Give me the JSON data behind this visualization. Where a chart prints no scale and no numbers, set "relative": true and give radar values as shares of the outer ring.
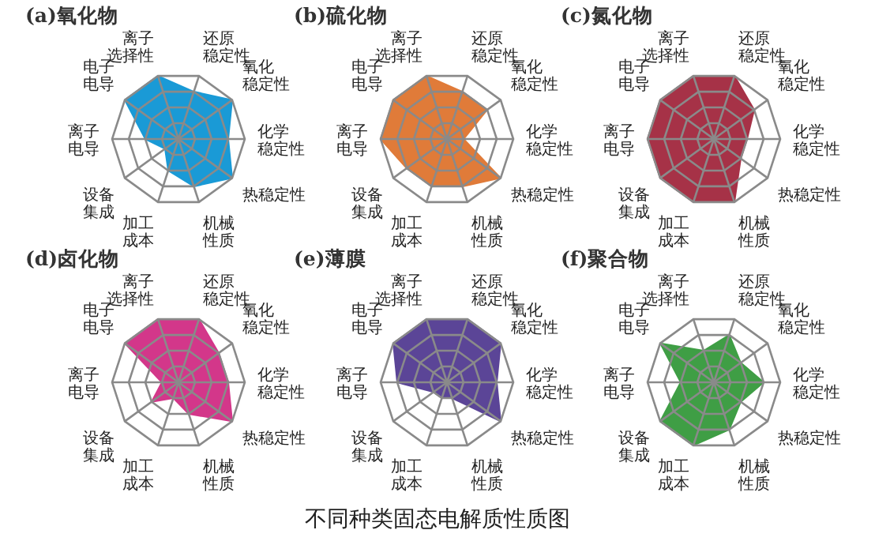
{
  "chart_data": [
    {
      "type": "radar",
      "title": "(a)氧化物",
      "relative": true,
      "categories": [
        "离子选择性",
        "还原稳定性",
        "氧化稳定性",
        "化学稳定性",
        "热稳定性",
        "机械性质",
        "加工成本",
        "设备集成",
        "离子电导",
        "电子电导"
      ],
      "series": [
        {
          "color": "#1a9ad6",
          "values": [
            1,
            0.75,
            1,
            0.75,
            1,
            0.75,
            0.5,
            0.25,
            0.5,
            1
          ]
        }
      ]
    },
    {
      "type": "radar",
      "title": "(b)硫化物",
      "relative": true,
      "categories": [
        "离子选择性",
        "还原稳定性",
        "氧化稳定性",
        "化学稳定性",
        "热稳定性",
        "机械性质",
        "加工成本",
        "设备集成",
        "离子电导",
        "电子电导"
      ],
      "series": [
        {
          "color": "#e07b39",
          "values": [
            1,
            0.75,
            0.75,
            0.25,
            1,
            0.75,
            0.75,
            0.75,
            1,
            1
          ]
        }
      ]
    },
    {
      "type": "radar",
      "title": "(c)氮化物",
      "relative": true,
      "categories": [
        "离子选择性",
        "还原稳定性",
        "氧化稳定性",
        "化学稳定性",
        "热稳定性",
        "机械性质",
        "加工成本",
        "设备集成",
        "离子电导",
        "电子电导"
      ],
      "series": [
        {
          "color": "#a63247",
          "values": [
            1,
            1,
            0.75,
            0.5,
            0.5,
            1,
            1,
            1,
            1,
            1
          ]
        }
      ]
    },
    {
      "type": "radar",
      "title": "(d)卤化物",
      "relative": true,
      "categories": [
        "离子选择性",
        "还原稳定性",
        "氧化稳定性",
        "化学稳定性",
        "热稳定性",
        "机械性质",
        "加工成本",
        "设备集成",
        "离子电导",
        "电子电导"
      ],
      "series": [
        {
          "color": "#d3378a",
          "values": [
            1,
            1,
            0.75,
            0.75,
            1,
            0.5,
            0.25,
            0.5,
            0.25,
            1
          ]
        }
      ]
    },
    {
      "type": "radar",
      "title": "(e)薄膜",
      "relative": true,
      "categories": [
        "离子选择性",
        "还原稳定性",
        "氧化稳定性",
        "化学稳定性",
        "热稳定性",
        "机械性质",
        "加工成本",
        "设备集成",
        "离子电导",
        "电子电导"
      ],
      "series": [
        {
          "color": "#5b4597",
          "values": [
            1,
            1,
            1,
            0.75,
            1,
            0.25,
            0.25,
            0.25,
            0.75,
            1
          ]
        }
      ]
    },
    {
      "type": "radar",
      "title": "(f)聚合物",
      "relative": true,
      "categories": [
        "离子选择性",
        "还原稳定性",
        "氧化稳定性",
        "化学稳定性",
        "热稳定性",
        "机械性质",
        "加工成本",
        "设备集成",
        "离子电导",
        "电子电导"
      ],
      "series": [
        {
          "color": "#3f9e45",
          "values": [
            0.5,
            0.75,
            0.5,
            0.75,
            0.5,
            0.75,
            1,
            1,
            0.5,
            1
          ]
        }
      ],
      "annotations": [
        "不同种类固态电解质性质图"
      ]
    }
  ]
}
